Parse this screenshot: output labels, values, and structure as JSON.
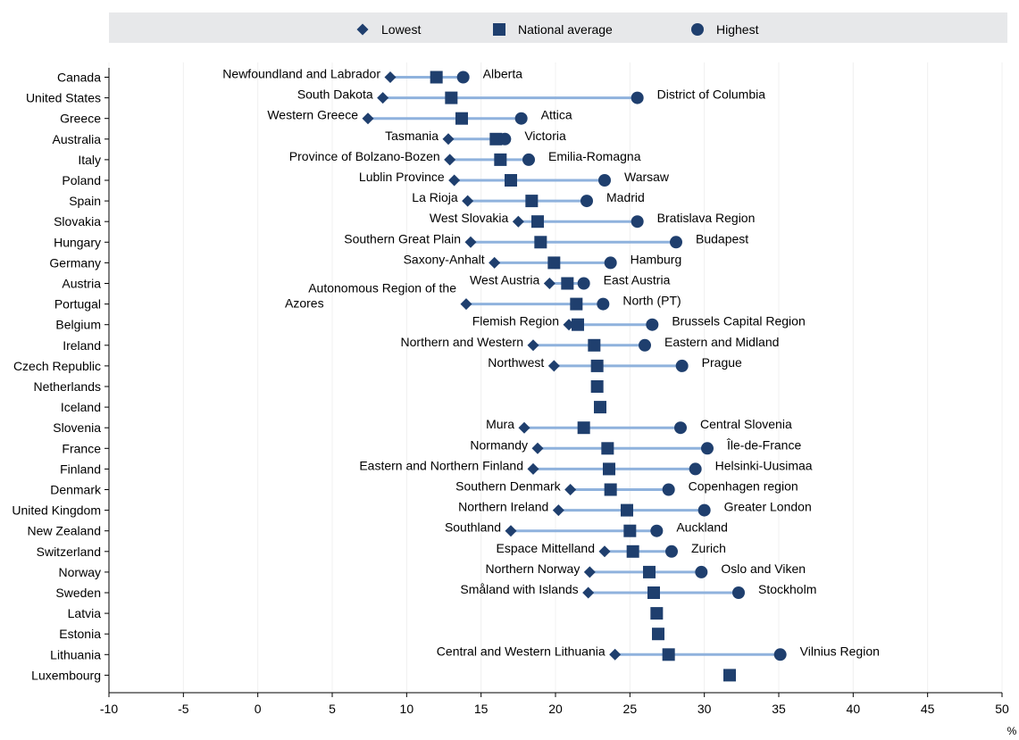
{
  "colors": {
    "marker": "#1f3f6e",
    "line": "#8fb2dd",
    "legend_bg": "#e7e8ea",
    "grid": "#ffffff",
    "axis": "#000000"
  },
  "chart_data": {
    "type": "scatter",
    "unit_label": "%",
    "xlim": [
      -10,
      50
    ],
    "x_ticks": [
      -10,
      -5,
      0,
      5,
      10,
      15,
      20,
      25,
      30,
      35,
      40,
      45,
      50
    ],
    "legend": {
      "position": "top",
      "items": [
        {
          "marker": "diamond",
          "label": "Lowest"
        },
        {
          "marker": "square",
          "label": "National average"
        },
        {
          "marker": "circle",
          "label": "Highest"
        }
      ]
    },
    "rows": [
      {
        "country": "Canada",
        "lowest": 8.9,
        "average": 12.0,
        "highest": 13.8,
        "lowest_region": "Newfoundland and Labrador",
        "highest_region": "Alberta"
      },
      {
        "country": "United States",
        "lowest": 8.4,
        "average": 13.0,
        "highest": 25.5,
        "lowest_region": "South Dakota",
        "highest_region": "District of Columbia"
      },
      {
        "country": "Greece",
        "lowest": 7.4,
        "average": 13.7,
        "highest": 17.7,
        "lowest_region": "Western Greece",
        "highest_region": "Attica"
      },
      {
        "country": "Australia",
        "lowest": 12.8,
        "average": 16.0,
        "highest": 16.6,
        "lowest_region": "Tasmania",
        "highest_region": "Victoria"
      },
      {
        "country": "Italy",
        "lowest": 12.9,
        "average": 16.3,
        "highest": 18.2,
        "lowest_region": "Province of Bolzano-Bozen",
        "highest_region": "Emilia-Romagna"
      },
      {
        "country": "Poland",
        "lowest": 13.2,
        "average": 17.0,
        "highest": 23.3,
        "lowest_region": "Lublin Province",
        "highest_region": "Warsaw"
      },
      {
        "country": "Spain",
        "lowest": 14.1,
        "average": 18.4,
        "highest": 22.1,
        "lowest_region": "La Rioja",
        "highest_region": "Madrid"
      },
      {
        "country": "Slovakia",
        "lowest": 17.5,
        "average": 18.8,
        "highest": 25.5,
        "lowest_region": "West Slovakia",
        "highest_region": "Bratislava Region"
      },
      {
        "country": "Hungary",
        "lowest": 14.3,
        "average": 19.0,
        "highest": 28.1,
        "lowest_region": "Southern Great Plain",
        "highest_region": "Budapest"
      },
      {
        "country": "Germany",
        "lowest": 15.9,
        "average": 19.9,
        "highest": 23.7,
        "lowest_region": "Saxony-Anhalt",
        "highest_region": "Hamburg"
      },
      {
        "country": "Austria",
        "lowest": 19.6,
        "average": 20.8,
        "highest": 21.9,
        "lowest_region": "West Austria",
        "highest_region": "East Austria"
      },
      {
        "country": "Portugal",
        "lowest": 14.0,
        "average": 21.4,
        "highest": 23.2,
        "lowest_region": "Autonomous Region of the Azores",
        "highest_region": "North (PT)"
      },
      {
        "country": "Belgium",
        "lowest": 20.9,
        "average": 21.5,
        "highest": 26.5,
        "lowest_region": "Flemish Region",
        "highest_region": "Brussels Capital Region"
      },
      {
        "country": "Ireland",
        "lowest": 18.5,
        "average": 22.6,
        "highest": 26.0,
        "lowest_region": "Northern and Western",
        "highest_region": "Eastern and Midland"
      },
      {
        "country": "Czech Republic",
        "lowest": 19.9,
        "average": 22.8,
        "highest": 28.5,
        "lowest_region": "Northwest",
        "highest_region": "Prague"
      },
      {
        "country": "Netherlands",
        "average": 22.8
      },
      {
        "country": "Iceland",
        "average": 23.0
      },
      {
        "country": "Slovenia",
        "lowest": 17.9,
        "average": 21.9,
        "highest": 28.4,
        "lowest_region": "Mura",
        "highest_region": "Central Slovenia"
      },
      {
        "country": "France",
        "lowest": 18.8,
        "average": 23.5,
        "highest": 30.2,
        "lowest_region": "Normandy",
        "highest_region": "Île-de-France"
      },
      {
        "country": "Finland",
        "lowest": 18.5,
        "average": 23.6,
        "highest": 29.4,
        "lowest_region": "Eastern and Northern Finland",
        "highest_region": "Helsinki-Uusimaa"
      },
      {
        "country": "Denmark",
        "lowest": 21.0,
        "average": 23.7,
        "highest": 27.6,
        "lowest_region": "Southern Denmark",
        "highest_region": "Copenhagen region"
      },
      {
        "country": "United Kingdom",
        "lowest": 20.2,
        "average": 24.8,
        "highest": 30.0,
        "lowest_region": "Northern Ireland",
        "highest_region": "Greater London"
      },
      {
        "country": "New Zealand",
        "lowest": 17.0,
        "average": 25.0,
        "highest": 26.8,
        "lowest_region": "Southland",
        "highest_region": "Auckland"
      },
      {
        "country": "Switzerland",
        "lowest": 23.3,
        "average": 25.2,
        "highest": 27.8,
        "lowest_region": "Espace Mittelland",
        "highest_region": "Zurich"
      },
      {
        "country": "Norway",
        "lowest": 22.3,
        "average": 26.3,
        "highest": 29.8,
        "lowest_region": "Northern Norway",
        "highest_region": "Oslo and Viken"
      },
      {
        "country": "Sweden",
        "lowest": 22.2,
        "average": 26.6,
        "highest": 32.3,
        "lowest_region": "Småland with Islands",
        "highest_region": "Stockholm"
      },
      {
        "country": "Latvia",
        "average": 26.8
      },
      {
        "country": "Estonia",
        "average": 26.9
      },
      {
        "country": "Lithuania",
        "lowest": 24.0,
        "average": 27.6,
        "highest": 35.1,
        "lowest_region": "Central and Western Lithuania",
        "highest_region": "Vilnius Region"
      },
      {
        "country": "Luxembourg",
        "average": 31.7
      }
    ]
  }
}
